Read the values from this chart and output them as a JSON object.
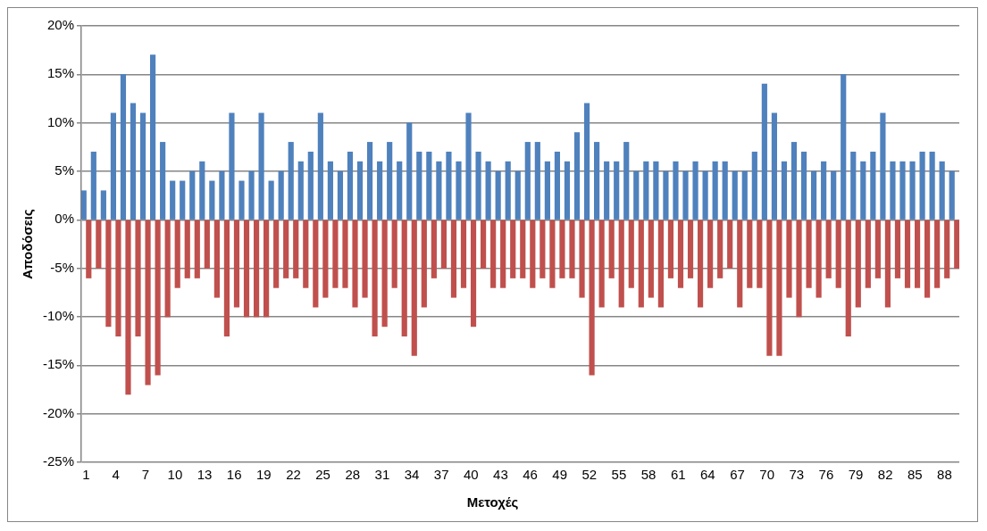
{
  "chart_data": {
    "type": "bar",
    "xlabel": "Μετοχές",
    "ylabel": "Αποδόσεις",
    "categories": [
      "1",
      null,
      null,
      "4",
      null,
      null,
      "7",
      null,
      null,
      "10",
      null,
      null,
      "13",
      null,
      null,
      "16",
      null,
      null,
      "19",
      null,
      null,
      "22",
      null,
      null,
      "25",
      null,
      null,
      "28",
      null,
      null,
      "31",
      null,
      null,
      "34",
      null,
      null,
      "37",
      null,
      null,
      "40",
      null,
      null,
      "43",
      null,
      null,
      "46",
      null,
      null,
      "49",
      null,
      null,
      "52",
      null,
      null,
      "55",
      null,
      null,
      "58",
      null,
      null,
      "61",
      null,
      null,
      "64",
      null,
      null,
      "67",
      null,
      null,
      "70",
      null,
      null,
      "73",
      null,
      null,
      "76",
      null,
      null,
      "79",
      null,
      null,
      "82",
      null,
      null,
      "85",
      null,
      null,
      "88",
      null
    ],
    "series": [
      {
        "color": "#4f81bd",
        "values": [
          3,
          7,
          3,
          11,
          15,
          12,
          11,
          17,
          8,
          4,
          4,
          5,
          6,
          4,
          5,
          11,
          4,
          5,
          11,
          4,
          5,
          8,
          6,
          7,
          11,
          6,
          5,
          7,
          6,
          8,
          6,
          8,
          6,
          10,
          7,
          7,
          6,
          7,
          6,
          11,
          7,
          6,
          5,
          6,
          5,
          8,
          8,
          6,
          7,
          6,
          9,
          12,
          8,
          6,
          6,
          8,
          5,
          6,
          6,
          5,
          6,
          5,
          6,
          5,
          6,
          6,
          5,
          5,
          7,
          14,
          11,
          6,
          8,
          7,
          5,
          6,
          5,
          15,
          7,
          6,
          7,
          11,
          6,
          6,
          6,
          7,
          7,
          6,
          5
        ]
      },
      {
        "color": "#c0504d",
        "values": [
          -6,
          -5,
          -11,
          -12,
          -18,
          -12,
          -17,
          -16,
          -10,
          -7,
          -6,
          -6,
          -5,
          -8,
          -12,
          -9,
          -10,
          -10,
          -10,
          -7,
          -6,
          -6,
          -7,
          -9,
          -8,
          -7,
          -7,
          -9,
          -8,
          -12,
          -11,
          -7,
          -12,
          -14,
          -9,
          -6,
          -5,
          -8,
          -7,
          -11,
          -5,
          -7,
          -7,
          -6,
          -6,
          -7,
          -6,
          -7,
          -6,
          -6,
          -8,
          -16,
          -9,
          -6,
          -9,
          -7,
          -9,
          -8,
          -9,
          -6,
          -7,
          -6,
          -9,
          -7,
          -6,
          -5,
          -9,
          -7,
          -7,
          -14,
          -14,
          -8,
          -10,
          -7,
          -8,
          -6,
          -7,
          -12,
          -9,
          -7,
          -6,
          -9,
          -6,
          -7,
          -7,
          -8,
          -7,
          -6,
          -5
        ]
      }
    ],
    "ylim": [
      -25,
      20
    ],
    "yticks": [
      {
        "value": -25,
        "label": "-25%"
      },
      {
        "value": -20,
        "label": "-20%"
      },
      {
        "value": -15,
        "label": "-15%"
      },
      {
        "value": -10,
        "label": "-10%"
      },
      {
        "value": -5,
        "label": "-5%"
      },
      {
        "value": 0,
        "label": "0%"
      },
      {
        "value": 5,
        "label": "5%"
      },
      {
        "value": 10,
        "label": "10%"
      },
      {
        "value": 15,
        "label": "15%"
      },
      {
        "value": 20,
        "label": "20%"
      }
    ],
    "grid": "y",
    "legend": false
  }
}
